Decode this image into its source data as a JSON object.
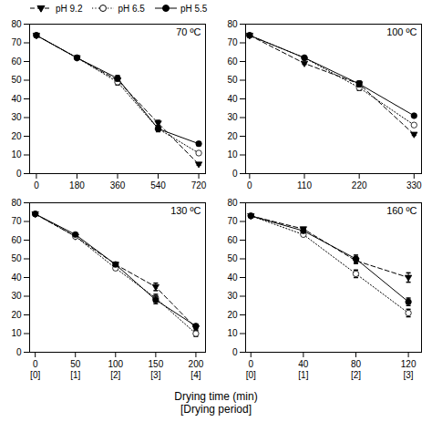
{
  "chart_data": [
    {
      "type": "line",
      "title": "70 ºC",
      "xlim": [
        -30,
        750
      ],
      "xticks": [
        0,
        180,
        360,
        540,
        720
      ],
      "ylim": [
        0,
        80
      ],
      "yticks": [
        0,
        10,
        20,
        30,
        40,
        50,
        60,
        70,
        80
      ],
      "legend": "top",
      "series": [
        {
          "name": "pH 9.2",
          "x": [
            0,
            180,
            360,
            540,
            720
          ],
          "values": [
            74,
            62,
            50,
            27,
            5
          ],
          "yerr": [
            0.5,
            0.5,
            1.5,
            1.5,
            0.5
          ],
          "color": "black",
          "marker": "triangle-down",
          "line_style": "dashed"
        },
        {
          "name": "pH 6.5",
          "x": [
            0,
            180,
            360,
            540,
            720
          ],
          "values": [
            74,
            62,
            49,
            24,
            11
          ],
          "yerr": [
            0.5,
            0.5,
            1.5,
            1.5,
            0.5
          ],
          "color": "black",
          "marker": "circle-open",
          "line_style": "dotted"
        },
        {
          "name": "pH 5.5",
          "x": [
            0,
            180,
            360,
            540,
            720
          ],
          "values": [
            74,
            62,
            51,
            24,
            16
          ],
          "yerr": [
            0.5,
            0.5,
            1.5,
            1.5,
            1.0
          ],
          "color": "black",
          "marker": "circle",
          "line_style": "solid"
        }
      ]
    },
    {
      "type": "line",
      "title": "100 ºC",
      "xlim": [
        -8,
        345
      ],
      "xticks": [
        0,
        110,
        220,
        330
      ],
      "ylim": [
        0,
        80
      ],
      "yticks": [
        0,
        10,
        20,
        30,
        40,
        50,
        60,
        70,
        80
      ],
      "series": [
        {
          "name": "pH 9.2",
          "x": [
            0,
            110,
            220,
            330
          ],
          "values": [
            74,
            59,
            48,
            21
          ],
          "yerr": [
            0.5,
            0.5,
            1.5,
            0.5
          ],
          "color": "black",
          "marker": "triangle-down",
          "line_style": "dashed"
        },
        {
          "name": "pH 6.5",
          "x": [
            0,
            110,
            220,
            330
          ],
          "values": [
            74,
            62,
            46,
            26
          ],
          "yerr": [
            0.5,
            0.5,
            1.5,
            0.5
          ],
          "color": "black",
          "marker": "circle-open",
          "line_style": "dotted"
        },
        {
          "name": "pH 5.5",
          "x": [
            0,
            110,
            220,
            330
          ],
          "values": [
            74,
            62,
            48,
            31
          ],
          "yerr": [
            0.5,
            0.5,
            1.5,
            0.5
          ],
          "color": "black",
          "marker": "circle",
          "line_style": "solid"
        }
      ]
    },
    {
      "type": "line",
      "title": "130 ºC",
      "xlim": [
        -7,
        212
      ],
      "xticks": [
        0,
        50,
        100,
        150,
        200
      ],
      "ylim": [
        0,
        80
      ],
      "yticks": [
        0,
        10,
        20,
        30,
        40,
        50,
        60,
        70,
        80
      ],
      "annotations": [
        {
          "x": 0,
          "text": "[0]"
        },
        {
          "x": 50,
          "text": "[1]"
        },
        {
          "x": 100,
          "text": "[2]"
        },
        {
          "x": 150,
          "text": "[3]"
        },
        {
          "x": 200,
          "text": "[4]"
        }
      ],
      "series": [
        {
          "name": "pH 9.2",
          "x": [
            0,
            50,
            100,
            150,
            200
          ],
          "values": [
            74,
            62,
            47,
            35,
            13
          ],
          "yerr": [
            0.5,
            0.5,
            1.0,
            2.0,
            1.0
          ],
          "color": "black",
          "marker": "triangle-down",
          "line_style": "dashed"
        },
        {
          "name": "pH 6.5",
          "x": [
            0,
            50,
            100,
            150,
            200
          ],
          "values": [
            74,
            62,
            45,
            29,
            10
          ],
          "yerr": [
            0.5,
            0.5,
            1.0,
            2.0,
            1.5
          ],
          "color": "black",
          "marker": "circle-open",
          "line_style": "dotted"
        },
        {
          "name": "pH 5.5",
          "x": [
            0,
            50,
            100,
            150,
            200
          ],
          "values": [
            74,
            63,
            47,
            28,
            14
          ],
          "yerr": [
            0.5,
            0.5,
            1.0,
            2.0,
            1.0
          ],
          "color": "black",
          "marker": "circle",
          "line_style": "solid"
        }
      ]
    },
    {
      "type": "line",
      "title": "160 ºC",
      "xlim": [
        -4,
        130
      ],
      "xticks": [
        0,
        40,
        80,
        120
      ],
      "ylim": [
        0,
        80
      ],
      "yticks": [
        0,
        10,
        20,
        30,
        40,
        50,
        60,
        70,
        80
      ],
      "annotations": [
        {
          "x": 0,
          "text": "[0]"
        },
        {
          "x": 40,
          "text": "[1]"
        },
        {
          "x": 80,
          "text": "[2]"
        },
        {
          "x": 120,
          "text": "[3]"
        }
      ],
      "series": [
        {
          "name": "pH 9.2",
          "x": [
            0,
            40,
            80,
            120
          ],
          "values": [
            73,
            66,
            49,
            40
          ],
          "yerr": [
            0.5,
            0.5,
            1.5,
            2.5
          ],
          "color": "black",
          "marker": "triangle-down",
          "line_style": "dashed"
        },
        {
          "name": "pH 6.5",
          "x": [
            0,
            40,
            80,
            120
          ],
          "values": [
            73,
            63,
            42,
            21
          ],
          "yerr": [
            0.5,
            0.5,
            2.0,
            2.0
          ],
          "color": "black",
          "marker": "circle-open",
          "line_style": "dotted"
        },
        {
          "name": "pH 5.5",
          "x": [
            0,
            40,
            80,
            120
          ],
          "values": [
            73,
            65,
            50,
            27
          ],
          "yerr": [
            0.5,
            0.5,
            2.0,
            2.0
          ],
          "color": "black",
          "marker": "circle",
          "line_style": "solid"
        }
      ]
    }
  ],
  "xlabel": [
    "Drying time (min)",
    "[Drying period]"
  ]
}
